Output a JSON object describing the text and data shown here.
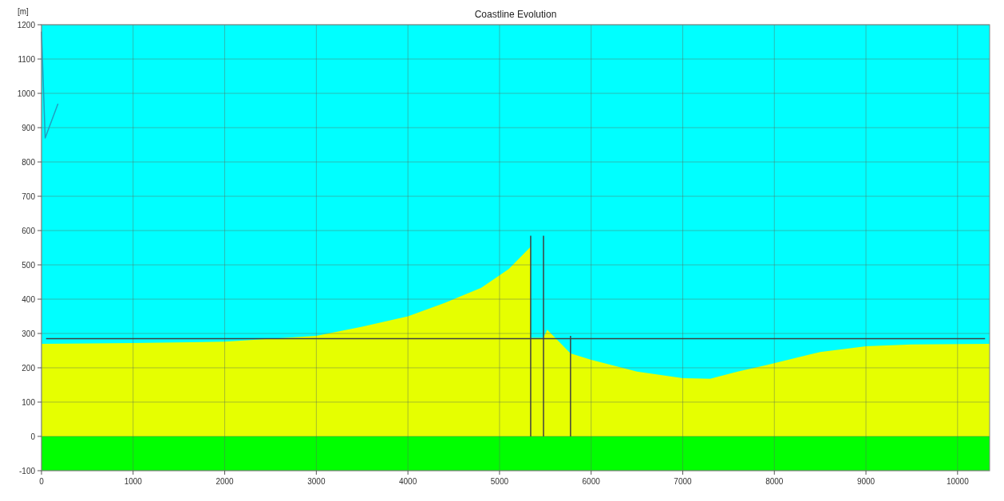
{
  "chart_data": {
    "type": "area",
    "title": "Coastline Evolution",
    "ylabel": "[m]",
    "xlim": [
      0,
      10350
    ],
    "ylim": [
      -100,
      1200
    ],
    "xticks": [
      0,
      1000,
      2000,
      3000,
      4000,
      5000,
      6000,
      7000,
      8000,
      9000,
      10000
    ],
    "yticks": [
      -100,
      0,
      100,
      200,
      300,
      400,
      500,
      600,
      700,
      800,
      900,
      1000,
      1100,
      1200
    ],
    "grid": true,
    "bands": [
      {
        "axis": "y",
        "from": 0,
        "to": 1200,
        "color": "#00ffff"
      },
      {
        "axis": "y",
        "from": -100,
        "to": 0,
        "color": "#00ff00"
      }
    ],
    "series": [
      {
        "color": "#e6ff00",
        "x": [
          0,
          1000,
          2000,
          3000,
          3500,
          4000,
          4400,
          4800,
          5100,
          5340,
          5340,
          5480,
          5520,
          5775,
          6000,
          6500,
          7000,
          7300,
          7600,
          7900,
          8500,
          9000,
          9500,
          10350
        ],
        "values": [
          270,
          272,
          276,
          293,
          320,
          350,
          389,
          433,
          488,
          553,
          287,
          287,
          311,
          242,
          223,
          189,
          170,
          168,
          189,
          207,
          246,
          263,
          268,
          270
        ]
      },
      {
        "type": "line",
        "color": "#404040",
        "x": [
          50,
          5000,
          10300
        ],
        "values": [
          285,
          285,
          285
        ]
      },
      {
        "type": "line",
        "color": "#404040",
        "x": [
          5340,
          5340
        ],
        "values": [
          0,
          585
        ]
      },
      {
        "type": "line",
        "color": "#404040",
        "x": [
          5480,
          5480
        ],
        "values": [
          0,
          585
        ]
      },
      {
        "type": "line",
        "color": "#404040",
        "x": [
          5775,
          5775
        ],
        "values": [
          0,
          293
        ]
      },
      {
        "type": "line",
        "color": "#20a0c0",
        "x": [
          0,
          40,
          180
        ],
        "values": [
          1180,
          870,
          970
        ]
      }
    ]
  }
}
